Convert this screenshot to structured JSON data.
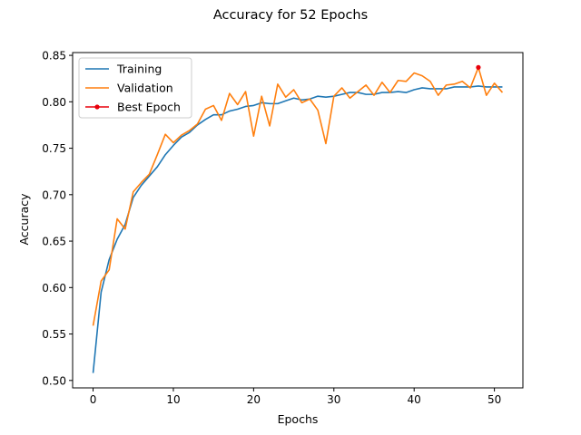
{
  "chart_data": {
    "type": "line",
    "title": "Accuracy for 52 Epochs",
    "xlabel": "Epochs",
    "ylabel": "Accuracy",
    "xlim": [
      -2.55,
      53.55
    ],
    "ylim": [
      0.492,
      0.853
    ],
    "xticks": [
      0,
      10,
      20,
      30,
      40,
      50
    ],
    "yticks": [
      0.5,
      0.55,
      0.6,
      0.65,
      0.7,
      0.75,
      0.8,
      0.85
    ],
    "grid": false,
    "legend_position": "top-left",
    "series": [
      {
        "name": "Training",
        "color": "#1f77b4",
        "x": [
          0,
          1,
          2,
          3,
          4,
          5,
          6,
          7,
          8,
          9,
          10,
          11,
          12,
          13,
          14,
          15,
          16,
          17,
          18,
          19,
          20,
          21,
          22,
          23,
          24,
          25,
          26,
          27,
          28,
          29,
          30,
          31,
          32,
          33,
          34,
          35,
          36,
          37,
          38,
          39,
          40,
          41,
          42,
          43,
          44,
          45,
          46,
          47,
          48,
          49,
          50,
          51
        ],
        "values": [
          0.508,
          0.595,
          0.63,
          0.652,
          0.668,
          0.697,
          0.71,
          0.72,
          0.73,
          0.743,
          0.753,
          0.762,
          0.767,
          0.775,
          0.781,
          0.786,
          0.786,
          0.79,
          0.792,
          0.795,
          0.796,
          0.799,
          0.798,
          0.798,
          0.801,
          0.804,
          0.802,
          0.803,
          0.806,
          0.805,
          0.806,
          0.808,
          0.81,
          0.81,
          0.808,
          0.808,
          0.81,
          0.81,
          0.811,
          0.81,
          0.813,
          0.815,
          0.814,
          0.814,
          0.814,
          0.816,
          0.816,
          0.816,
          0.817,
          0.816,
          0.816,
          0.816
        ]
      },
      {
        "name": "Validation",
        "color": "#ff7f0e",
        "x": [
          0,
          1,
          2,
          3,
          4,
          5,
          6,
          7,
          8,
          9,
          10,
          11,
          12,
          13,
          14,
          15,
          16,
          17,
          18,
          19,
          20,
          21,
          22,
          23,
          24,
          25,
          26,
          27,
          28,
          29,
          30,
          31,
          32,
          33,
          34,
          35,
          36,
          37,
          38,
          39,
          40,
          41,
          42,
          43,
          44,
          45,
          46,
          47,
          48,
          49,
          50,
          51
        ],
        "values": [
          0.559,
          0.607,
          0.619,
          0.674,
          0.663,
          0.703,
          0.713,
          0.722,
          0.743,
          0.765,
          0.756,
          0.764,
          0.769,
          0.776,
          0.792,
          0.796,
          0.78,
          0.809,
          0.797,
          0.811,
          0.763,
          0.806,
          0.774,
          0.819,
          0.805,
          0.813,
          0.799,
          0.803,
          0.791,
          0.755,
          0.806,
          0.815,
          0.804,
          0.811,
          0.818,
          0.807,
          0.821,
          0.81,
          0.823,
          0.822,
          0.831,
          0.828,
          0.822,
          0.807,
          0.818,
          0.819,
          0.822,
          0.815,
          0.837,
          0.807,
          0.82,
          0.81
        ]
      },
      {
        "name": "Best Epoch",
        "color": "#e8000b",
        "x": [
          48
        ],
        "values": [
          0.837
        ]
      }
    ]
  }
}
